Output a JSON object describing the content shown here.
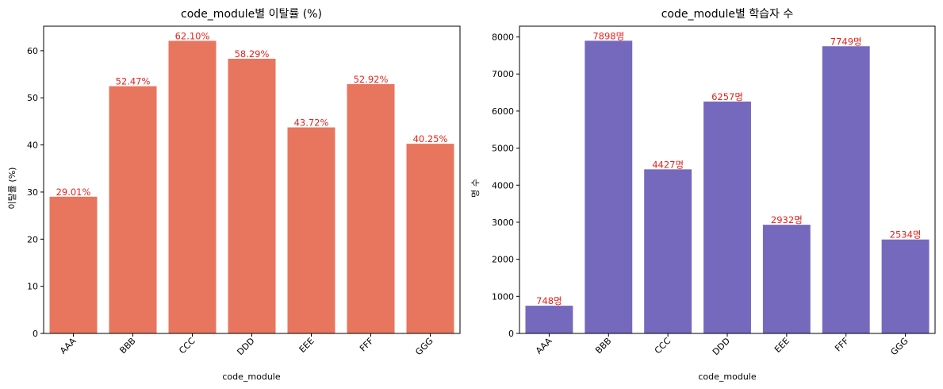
{
  "chart_data": [
    {
      "type": "bar",
      "title": "code_module별 이탈률 (%)",
      "xlabel": "code_module",
      "ylabel": "이탈률 (%)",
      "categories": [
        "AAA",
        "BBB",
        "CCC",
        "DDD",
        "EEE",
        "FFF",
        "GGG"
      ],
      "values": [
        29.01,
        52.47,
        62.1,
        58.29,
        43.72,
        52.92,
        40.25
      ],
      "data_labels": [
        "29.01%",
        "52.47%",
        "62.10%",
        "58.29%",
        "43.72%",
        "52.92%",
        "40.25%"
      ],
      "ylim": [
        0,
        65.2
      ],
      "yticks": [
        0,
        10,
        20,
        30,
        40,
        50,
        60
      ],
      "bar_color": "#e8765e",
      "label_color": "#e8231c",
      "grid": false
    },
    {
      "type": "bar",
      "title": "code_module별 학습자 수",
      "xlabel": "code_module",
      "ylabel": "명 수",
      "categories": [
        "AAA",
        "BBB",
        "CCC",
        "DDD",
        "EEE",
        "FFF",
        "GGG"
      ],
      "values": [
        748,
        7898,
        4427,
        6257,
        2932,
        7749,
        2534
      ],
      "data_labels": [
        "748명",
        "7898명",
        "4427명",
        "6257명",
        "2932명",
        "7749명",
        "2534명"
      ],
      "ylim": [
        0,
        8290
      ],
      "yticks": [
        0,
        1000,
        2000,
        3000,
        4000,
        5000,
        6000,
        7000,
        8000
      ],
      "bar_color": "#7569be",
      "label_color": "#e8231c",
      "grid": false
    }
  ]
}
